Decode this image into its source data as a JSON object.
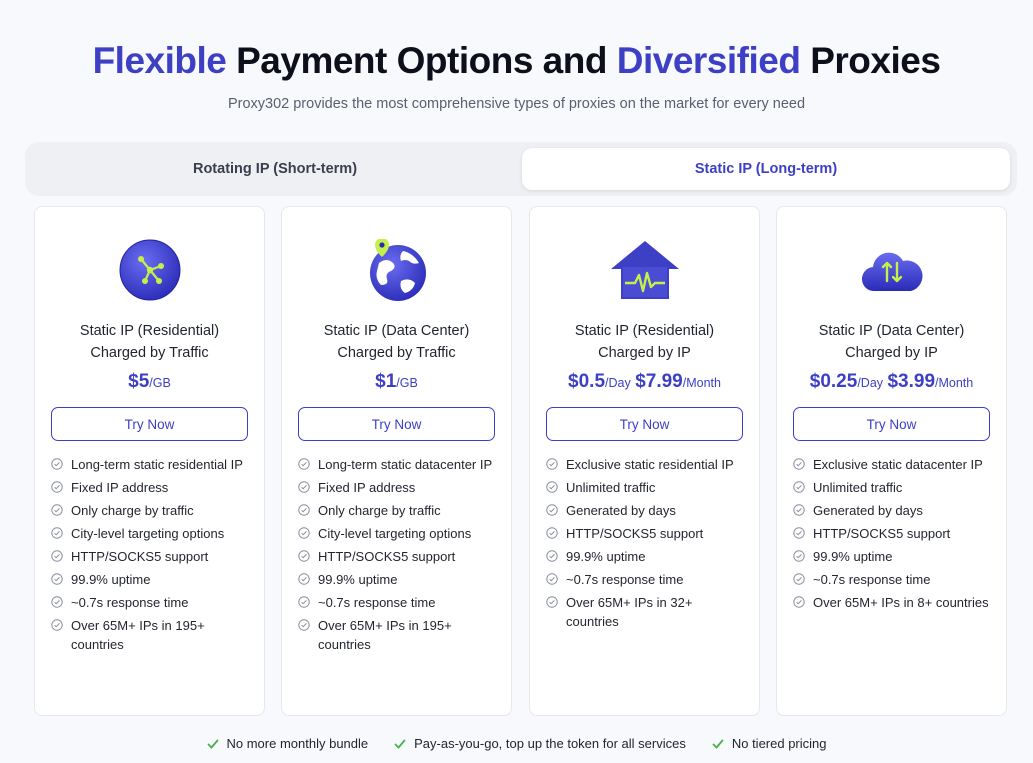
{
  "header": {
    "title_parts": [
      "Flexible",
      "Payment Options and",
      "Diversified",
      "Proxies"
    ],
    "subtitle": "Proxy302 provides the most comprehensive types of proxies on the market for every need"
  },
  "tabs": [
    {
      "label": "Rotating IP (Short-term)",
      "active": false
    },
    {
      "label": "Static IP (Long-term)",
      "active": true
    }
  ],
  "cards": [
    {
      "icon": "network-globe-icon",
      "title_line1": "Static IP (Residential)",
      "title_line2": "Charged by Traffic",
      "price1": "$5",
      "unit1": "/GB",
      "cta": "Try Now",
      "features": [
        "Long-term static residential IP",
        "Fixed IP address",
        "Only charge by traffic",
        "City-level targeting options",
        "HTTP/SOCKS5 support",
        "99.9% uptime",
        "~0.7s response time",
        "Over 65M+ IPs in 195+ countries"
      ]
    },
    {
      "icon": "globe-pin-icon",
      "title_line1": "Static IP (Data Center)",
      "title_line2": "Charged by Traffic",
      "price1": "$1",
      "unit1": "/GB",
      "cta": "Try Now",
      "features": [
        "Long-term static datacenter IP",
        "Fixed IP address",
        "Only charge by traffic",
        "City-level targeting options",
        "HTTP/SOCKS5 support",
        "99.9% uptime",
        "~0.7s response time",
        "Over 65M+ IPs in 195+ countries"
      ]
    },
    {
      "icon": "house-pulse-icon",
      "title_line1": "Static IP (Residential)",
      "title_line2": "Charged by IP",
      "price1": "$0.5",
      "unit1": "/Day",
      "price2": "$7.99",
      "unit2": "/Month",
      "cta": "Try Now",
      "features": [
        "Exclusive static residential IP",
        "Unlimited traffic",
        "Generated by days",
        "HTTP/SOCKS5 support",
        "99.9% uptime",
        "~0.7s response time",
        "Over 65M+ IPs in 32+ countries"
      ]
    },
    {
      "icon": "cloud-sync-icon",
      "title_line1": "Static IP (Data Center)",
      "title_line2": "Charged by IP",
      "price1": "$0.25",
      "unit1": "/Day",
      "price2": "$3.99",
      "unit2": "/Month",
      "cta": "Try Now",
      "features": [
        "Exclusive static datacenter IP",
        "Unlimited traffic",
        "Generated by days",
        "HTTP/SOCKS5 support",
        "99.9% uptime",
        "~0.7s response time",
        "Over 65M+ IPs in 8+ countries"
      ]
    }
  ],
  "footer": [
    "No more monthly bundle",
    "Pay-as-you-go, top up the token for all services",
    "No tiered pricing"
  ],
  "colors": {
    "accent": "#3d3fc4",
    "check_green": "#4caf50"
  }
}
